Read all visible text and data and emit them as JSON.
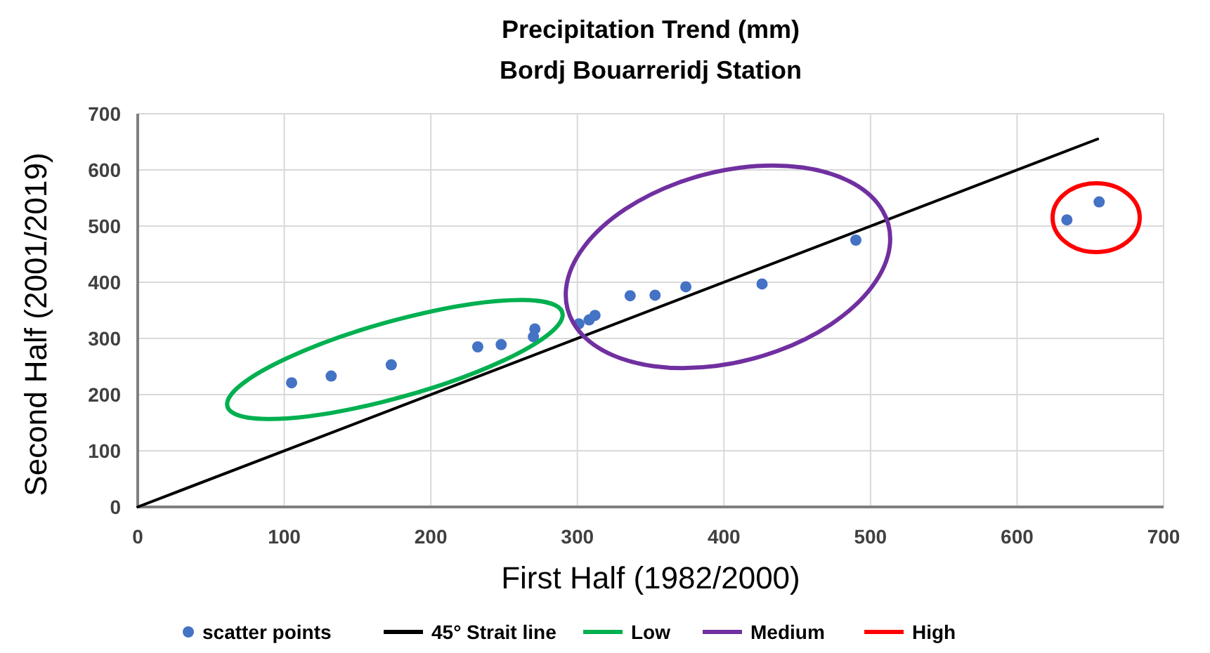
{
  "chart_data": {
    "type": "scatter",
    "title": "Precipitation Trend (mm)",
    "subtitle": "Bordj Bouarreridj Station",
    "xlabel": "First Half (1982/2000)",
    "ylabel": "Second Half (2001/2019)",
    "xlim": [
      0,
      700
    ],
    "xticks": [
      0,
      100,
      200,
      300,
      400,
      500,
      600,
      700
    ],
    "ylim": [
      0,
      700
    ],
    "yticks": [
      0,
      100,
      200,
      300,
      400,
      500,
      600,
      700
    ],
    "grid": true,
    "legend": "bottom",
    "annotations": [
      "Low",
      "Medium",
      "High"
    ],
    "series": [
      {
        "name": "scatter points",
        "marker": "circle",
        "color": "#4472c4",
        "x": [
          105,
          132,
          173,
          232,
          248,
          270,
          271,
          301,
          308,
          312,
          336,
          353,
          374,
          426,
          490,
          634,
          656
        ],
        "values": [
          221,
          233,
          253,
          285,
          289,
          303,
          317,
          326,
          333,
          341,
          376,
          377,
          392,
          397,
          475,
          511,
          543
        ]
      },
      {
        "name": "45° Strait line",
        "type": "line",
        "color": "#000000",
        "x": [
          0,
          655
        ],
        "values": [
          0,
          655
        ]
      }
    ]
  }
}
